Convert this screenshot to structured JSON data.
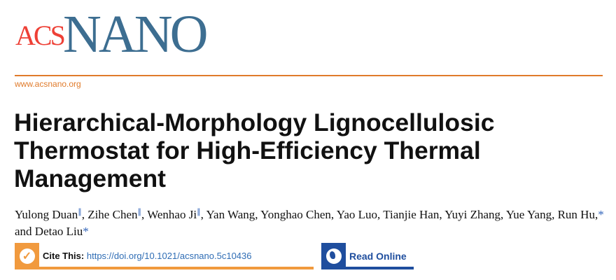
{
  "logo": {
    "text_acs": "ACS",
    "text_nano": "NANO",
    "colors": {
      "acs": "#ee4036",
      "nano": "#3d6e91"
    }
  },
  "journal_url": "www.acsnano.org",
  "title": "Hierarchical-Morphology Lignocellulosic Thermostat for High-Efficiency Thermal Management",
  "authors": [
    {
      "name": "Yulong Duan",
      "mark": "∥"
    },
    {
      "name": "Zihe Chen",
      "mark": "∥"
    },
    {
      "name": "Wenhao Ji",
      "mark": "∥"
    },
    {
      "name": "Yan Wang"
    },
    {
      "name": "Yonghao Chen"
    },
    {
      "name": "Yao Luo"
    },
    {
      "name": "Tianjie Han"
    },
    {
      "name": "Yuyi Zhang"
    },
    {
      "name": "Yue Yang"
    },
    {
      "name": "Run Hu",
      "mark": "*"
    },
    {
      "name": "Detao Liu",
      "mark": "*"
    }
  ],
  "and": "and",
  "cite": {
    "label": "Cite This:",
    "doi": "https://doi.org/10.1021/acsnano.5c10436",
    "icon": "checkmark-icon",
    "color": "#f19a3e"
  },
  "read_online": {
    "label": "Read Online",
    "icon": "globe-icon",
    "color": "#1f4e9e"
  }
}
